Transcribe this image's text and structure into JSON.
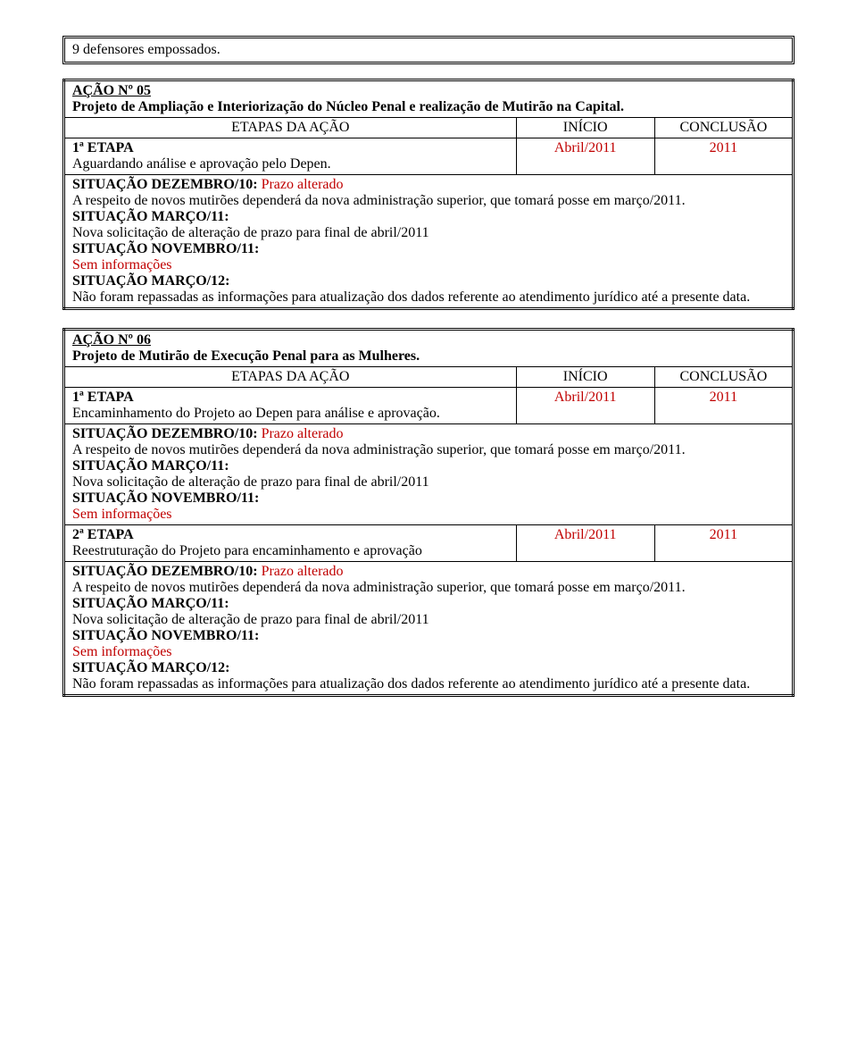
{
  "box_top": "9 defensores empossados.",
  "acao05": {
    "title": "AÇÃO Nº 05",
    "subtitle": "Projeto de Ampliação e Interiorização do Núcleo Penal e realização de Mutirão na Capital.",
    "header_etapas": "ETAPAS DA AÇÃO",
    "header_inicio": "INÍCIO",
    "header_conclusao": "CONCLUSÃO",
    "etapa1_label": "1ª ETAPA",
    "etapa1_desc": "Aguardando análise e aprovação pelo Depen.",
    "etapa1_inicio": "Abril/2011",
    "etapa1_conclusao": "2011",
    "sit_dez_label": "SITUAÇÃO DEZEMBRO/10:",
    "sit_dez_status": "Prazo alterado",
    "sit_dez_text": "A respeito de novos mutirões dependerá da nova administração superior, que tomará posse em março/2011.",
    "sit_mar11_label": "SITUAÇÃO MARÇO/11:",
    "sit_mar11_text": "Nova solicitação de alteração de prazo para final de abril/2011",
    "sit_nov11_label": "SITUAÇÃO NOVEMBRO/11:",
    "sit_nov11_text": "Sem informações",
    "sit_mar12_label": "SITUAÇÃO MARÇO/12:",
    "sit_mar12_text": "Não foram repassadas as informações para atualização dos dados referente ao atendimento jurídico até a presente data."
  },
  "acao06": {
    "title": "AÇÃO Nº 06",
    "subtitle": "Projeto de Mutirão de Execução Penal para as Mulheres.",
    "header_etapas": "ETAPAS DA AÇÃO",
    "header_inicio": "INÍCIO",
    "header_conclusao": "CONCLUSÃO",
    "etapa1_label": "1ª ETAPA",
    "etapa1_desc": "Encaminhamento do Projeto ao Depen para análise e aprovação.",
    "etapa1_inicio": "Abril/2011",
    "etapa1_conclusao": "2011",
    "sit1_dez_label": "SITUAÇÃO DEZEMBRO/10:",
    "sit1_dez_status": "Prazo alterado",
    "sit1_dez_text": "A respeito de novos mutirões dependerá da nova administração superior, que tomará posse em março/2011.",
    "sit1_mar11_label": "SITUAÇÃO MARÇO/11:",
    "sit1_mar11_text": "Nova solicitação de alteração de prazo para final de abril/2011",
    "sit1_nov11_label": "SITUAÇÃO NOVEMBRO/11:",
    "sit1_nov11_text": "Sem informações",
    "etapa2_label": "2ª ETAPA",
    "etapa2_desc": "Reestruturação do Projeto para encaminhamento e aprovação",
    "etapa2_inicio": "Abril/2011",
    "etapa2_conclusao": "2011",
    "sit2_dez_label": "SITUAÇÃO DEZEMBRO/10:",
    "sit2_dez_status": "Prazo alterado",
    "sit2_dez_text": "A respeito de novos mutirões dependerá da nova administração superior, que tomará posse em março/2011.",
    "sit2_mar11_label": "SITUAÇÃO MARÇO/11:",
    "sit2_mar11_text": "Nova solicitação de alteração de prazo para final de abril/2011",
    "sit2_nov11_label": "SITUAÇÃO NOVEMBRO/11:",
    "sit2_nov11_text": "Sem informações",
    "sit2_mar12_label": "SITUAÇÃO MARÇO/12:",
    "sit2_mar12_text": "Não foram repassadas as informações para atualização dos dados referente ao atendimento jurídico até a presente data."
  }
}
